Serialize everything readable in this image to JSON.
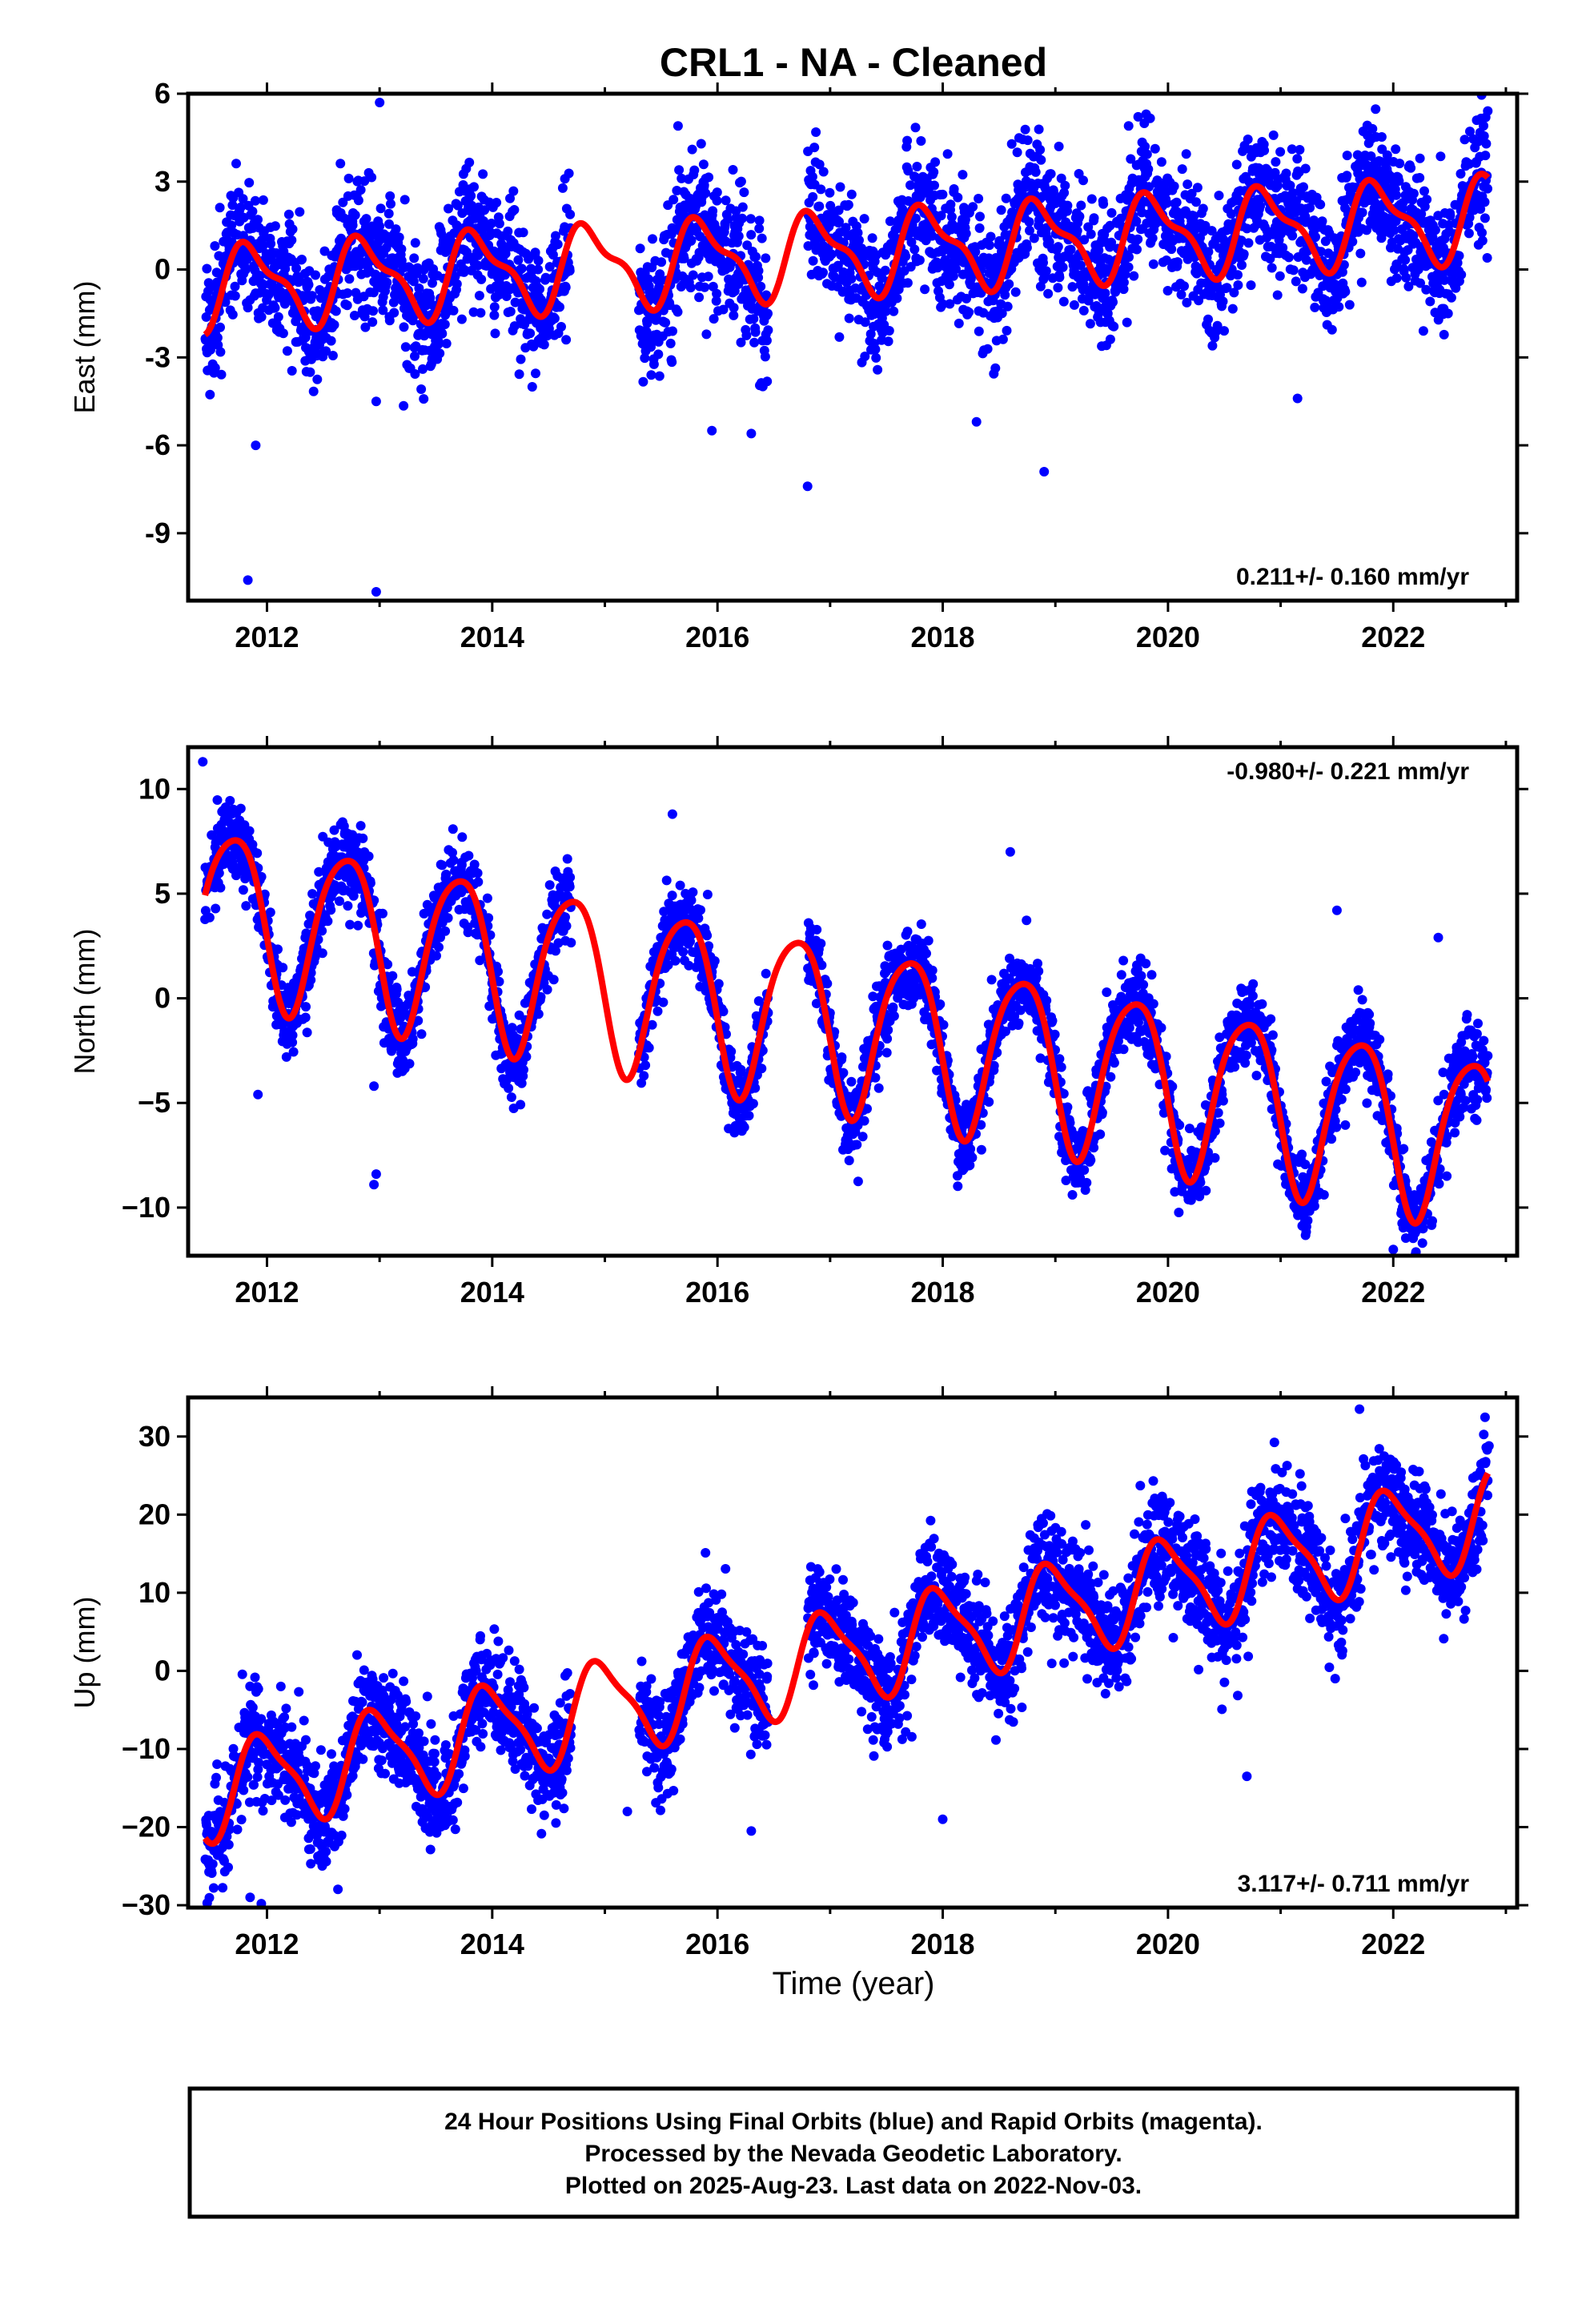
{
  "chart_data": {
    "type": "scatter",
    "title": "CRL1  - NA - Cleaned",
    "xlabel": "Time (year)",
    "xlim": [
      2011.3,
      2023.1
    ],
    "x_ticks": [
      2012,
      2014,
      2016,
      2018,
      2020,
      2022
    ],
    "x_tick_labels": [
      "2012",
      "2014",
      "2016",
      "2018",
      "2020",
      "2022"
    ],
    "colors": {
      "points": "#0000ff",
      "model": "#ff0000",
      "frame": "#000000"
    },
    "panels": [
      {
        "ylabel": "East (mm)",
        "ylim": [
          -11.3,
          6.0
        ],
        "yticks": [
          -9,
          -6,
          -3,
          0,
          3,
          6
        ],
        "ytick_labels": [
          "-9",
          "-6",
          "-3",
          "0",
          "3",
          "6"
        ],
        "rate_label": "0.211+/- 0.160 mm/yr",
        "rate_position": "bottom-right",
        "rate_mm_per_yr": 0.211,
        "rate_sigma": 0.16,
        "model": {
          "ref_year": 2011.5,
          "offset": -0.6,
          "annual_amp": 1.3,
          "annual_phase_year": 0.62,
          "semiannual_amp": 0.5,
          "semiannual_phase_year": 0.1
        },
        "scatter_sigma": 1.1,
        "outliers": [
          [
            2011.83,
            -10.6
          ],
          [
            2012.97,
            -11.0
          ],
          [
            2012.97,
            -4.5
          ],
          [
            2015.95,
            -5.5
          ],
          [
            2016.3,
            -5.6
          ],
          [
            2016.8,
            -7.4
          ],
          [
            2018.3,
            -5.2
          ],
          [
            2018.9,
            -6.9
          ],
          [
            2021.15,
            -4.4
          ],
          [
            2011.9,
            -6.0
          ],
          [
            2013.0,
            5.7
          ],
          [
            2019.65,
            4.9
          ],
          [
            2015.65,
            4.9
          ]
        ]
      },
      {
        "ylabel": "North (mm)",
        "ylim": [
          -12.3,
          12.0
        ],
        "yticks": [
          -10,
          -5,
          0,
          5,
          10
        ],
        "ytick_labels": [
          "−10",
          "−5",
          "0",
          "5",
          "10"
        ],
        "rate_label": "-0.980+/- 0.221 mm/yr",
        "rate_position": "top-right",
        "rate_mm_per_yr": -0.98,
        "rate_sigma": 0.221,
        "model": {
          "ref_year": 2011.5,
          "offset": 4.3,
          "annual_amp": 4.0,
          "annual_phase_year": 0.45,
          "semiannual_amp": 0.6,
          "semiannual_phase_year": 0.3
        },
        "scatter_sigma": 1.0,
        "outliers": [
          [
            2011.43,
            11.3
          ],
          [
            2011.92,
            -4.6
          ],
          [
            2012.95,
            -8.9
          ],
          [
            2012.97,
            -8.4
          ],
          [
            2012.95,
            -4.2
          ],
          [
            2021.5,
            4.2
          ],
          [
            2022.4,
            2.9
          ],
          [
            2022.0,
            -12.0
          ],
          [
            2018.6,
            7.0
          ],
          [
            2015.6,
            8.8
          ]
        ]
      },
      {
        "ylabel": "Up (mm)",
        "ylim": [
          -30.3,
          35.0
        ],
        "yticks": [
          -30,
          -20,
          -10,
          0,
          10,
          20,
          30
        ],
        "ytick_labels": [
          "−30",
          "−20",
          "−10",
          "0",
          "10",
          "20",
          "30"
        ],
        "rate_label": "3.117+/- 0.711 mm/yr",
        "rate_position": "bottom-right",
        "rate_mm_per_yr": 3.117,
        "rate_sigma": 0.711,
        "model": {
          "ref_year": 2011.5,
          "offset": -15.5,
          "annual_amp": 5.8,
          "annual_phase_year": 0.72,
          "semiannual_amp": 1.5,
          "semiannual_phase_year": 0.2
        },
        "scatter_sigma": 3.5,
        "outliers": [
          [
            2011.85,
            -29.0
          ],
          [
            2011.95,
            -29.8
          ],
          [
            2016.3,
            -20.5
          ],
          [
            2018.0,
            -19.0
          ],
          [
            2021.7,
            33.5
          ],
          [
            2022.85,
            28.8
          ],
          [
            2015.2,
            -18.0
          ],
          [
            2020.7,
            -13.5
          ]
        ]
      }
    ],
    "data_gaps": [
      [
        2014.7,
        2015.3
      ],
      [
        2016.45,
        2016.8
      ]
    ],
    "last_data_year": 2022.84
  },
  "footer": {
    "line1": "24 Hour Positions Using Final Orbits (blue) and Rapid Orbits (magenta).",
    "line2": "Processed by the Nevada Geodetic Laboratory.",
    "line3": "Plotted on 2025-Aug-23. Last data on 2022-Nov-03."
  }
}
